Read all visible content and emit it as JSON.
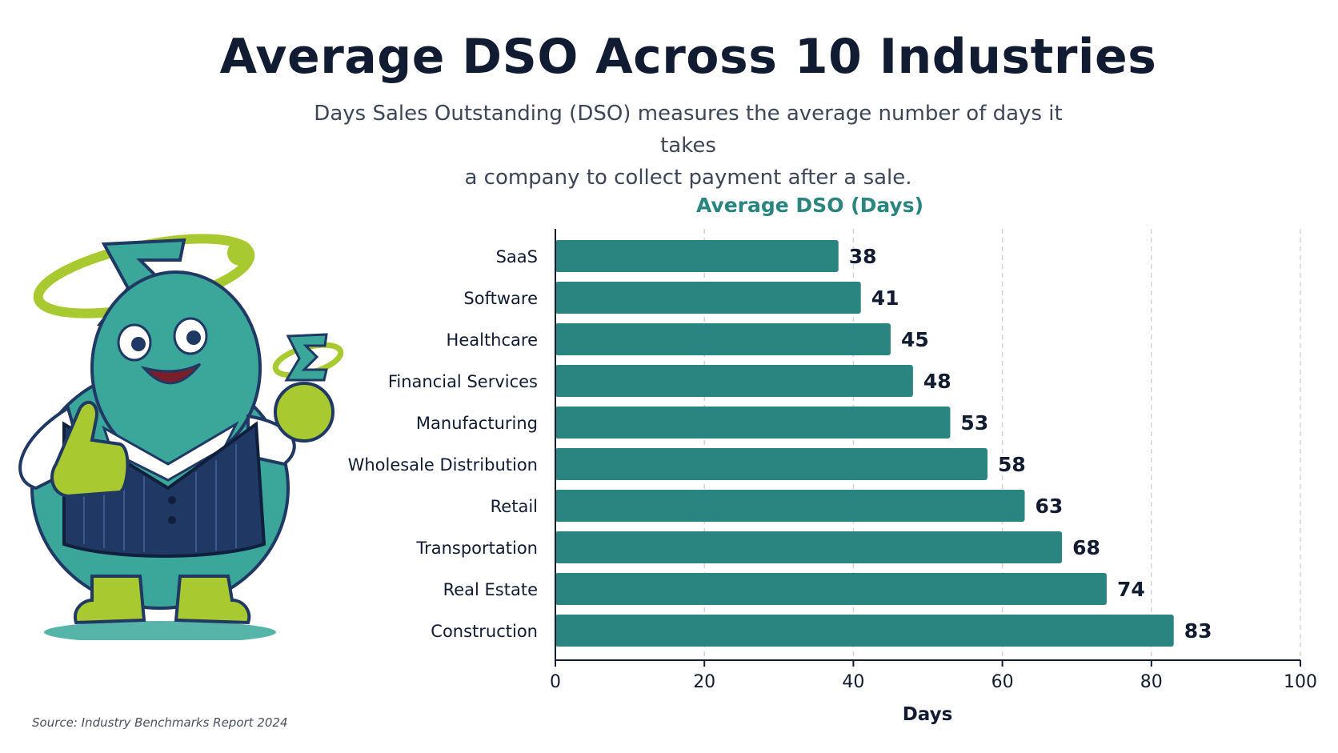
{
  "title": "Average DSO Across 10 Industries",
  "subtitle_line1": "Days Sales Outstanding (DSO) measures the average number of days it takes",
  "subtitle_line2": "a company to collect payment after a sale.",
  "source": "Source: Industry Benchmarks Report 2024",
  "colors": {
    "bar": "#2a8581",
    "chart_title": "#2a8581",
    "text": "#111c33",
    "grid": "#cfd4da",
    "mascot_body": "#3aa79a",
    "mascot_accent": "#a8c92f",
    "mascot_vest": "#1f3864"
  },
  "chart_data": {
    "type": "bar",
    "orientation": "horizontal",
    "title": "Average DSO (Days)",
    "xlabel": "Days",
    "ylabel": "",
    "xlim": [
      0,
      100
    ],
    "xticks": [
      0,
      20,
      40,
      60,
      80,
      100
    ],
    "grid": "vertical dashed",
    "categories": [
      "SaaS",
      "Software",
      "Healthcare",
      "Financial Services",
      "Manufacturing",
      "Wholesale Distribution",
      "Retail",
      "Transportation",
      "Real Estate",
      "Construction"
    ],
    "values": [
      38,
      41,
      45,
      48,
      53,
      58,
      63,
      68,
      74,
      83
    ],
    "data_labels": [
      "38",
      "41",
      "45",
      "48",
      "53",
      "58",
      "63",
      "68",
      "74",
      "83"
    ]
  }
}
